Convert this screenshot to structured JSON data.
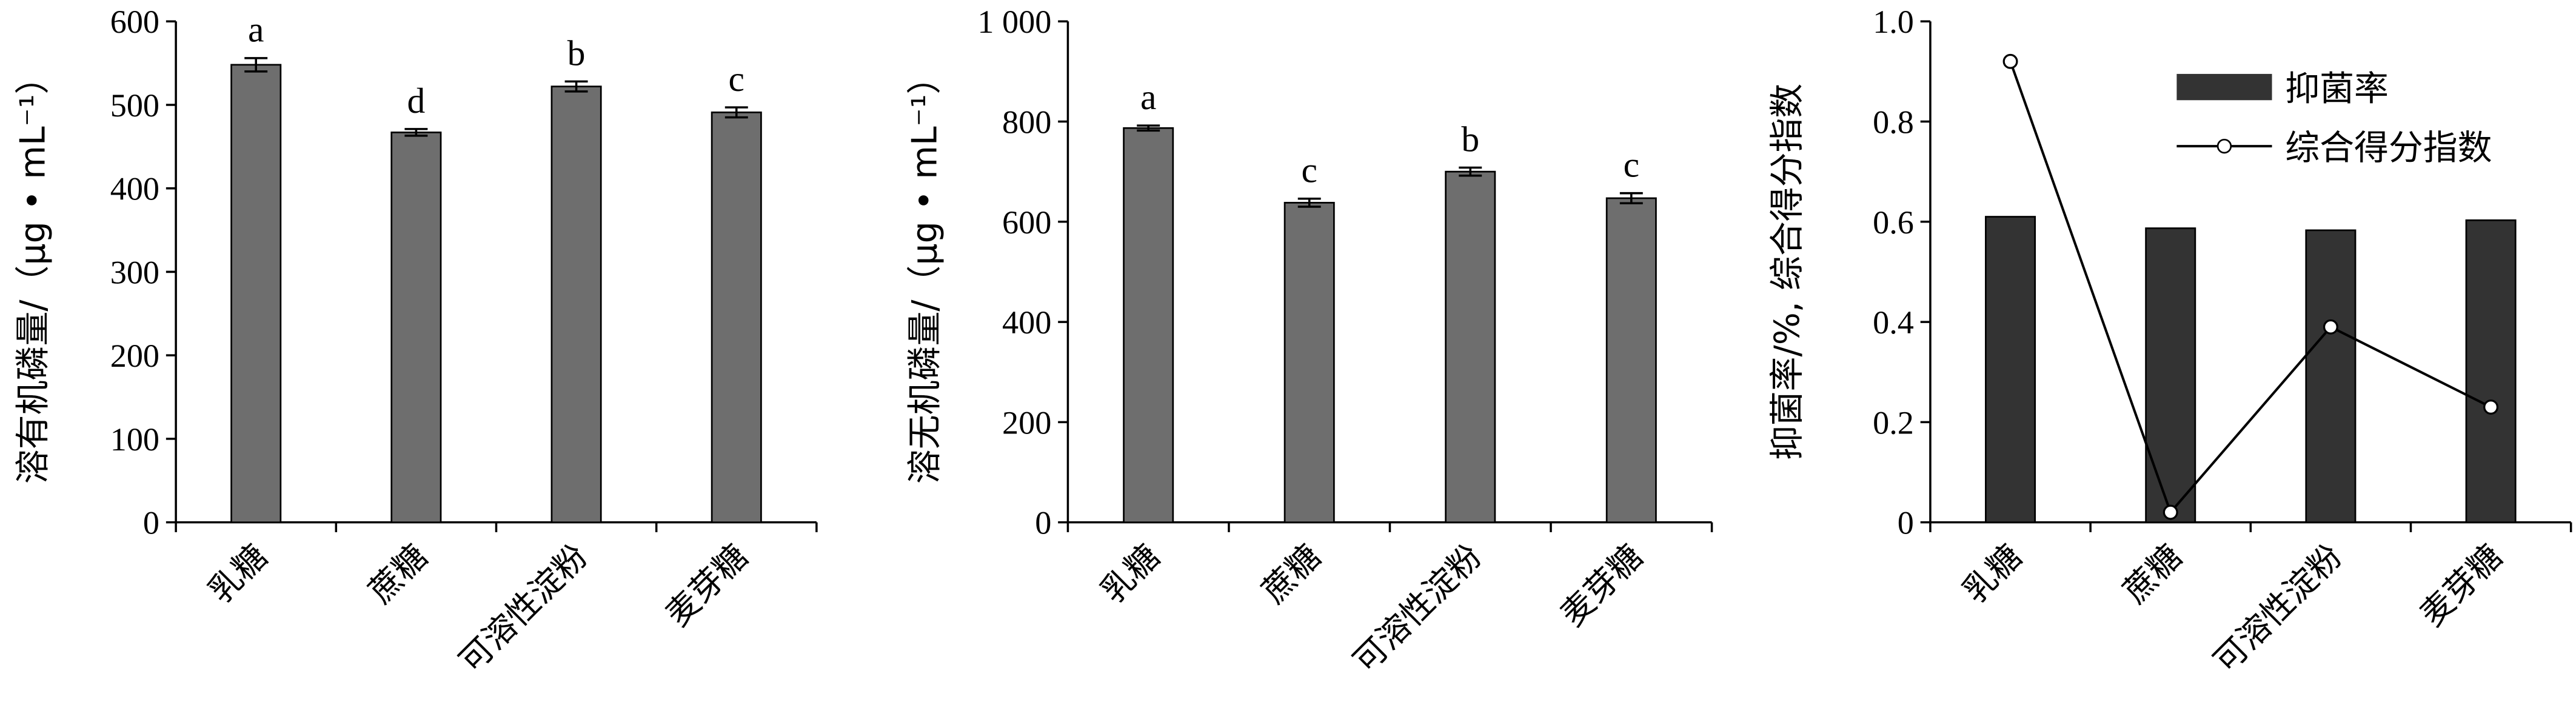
{
  "chart_data": [
    {
      "type": "bar",
      "ylabel": "溶有机磷量/（μg • mL⁻¹）",
      "categories": [
        "乳糖",
        "蔗糖",
        "可溶性淀粉",
        "麦芽糖"
      ],
      "values": [
        548,
        467,
        522,
        491
      ],
      "errors": [
        8,
        4,
        6,
        6
      ],
      "letters": [
        "a",
        "d",
        "b",
        "c"
      ],
      "color": "#6e6e6e",
      "ylim": [
        0,
        600
      ],
      "yticks": [
        0,
        100,
        200,
        300,
        400,
        500,
        600
      ]
    },
    {
      "type": "bar",
      "ylabel": "溶无机磷量/（μg • mL⁻¹）",
      "categories": [
        "乳糖",
        "蔗糖",
        "可溶性淀粉",
        "麦芽糖"
      ],
      "values": [
        787,
        638,
        700,
        647
      ],
      "errors": [
        5,
        8,
        8,
        10
      ],
      "letters": [
        "a",
        "c",
        "b",
        "c"
      ],
      "color": "#6e6e6e",
      "ylim": [
        0,
        1000
      ],
      "yticks": [
        0,
        200,
        400,
        600,
        800,
        {
          "value": 1000,
          "label": "1 000"
        }
      ]
    },
    {
      "type": "combo",
      "ylabel": "抑菌率/%, 综合得分指数",
      "categories": [
        "乳糖",
        "蔗糖",
        "可溶性淀粉",
        "麦芽糖"
      ],
      "series": [
        {
          "name": "抑菌率",
          "kind": "bar",
          "color": "#333333",
          "values": [
            0.61,
            0.587,
            0.583,
            0.603
          ]
        },
        {
          "name": "综合得分指数",
          "kind": "line",
          "color": "#000000",
          "values": [
            0.92,
            0.02,
            0.39,
            0.23
          ]
        }
      ],
      "ylim": [
        0,
        1
      ],
      "yticks": [
        0,
        0.2,
        0.4,
        0.6,
        0.8,
        {
          "value": 1,
          "label": "1.0"
        }
      ],
      "legend": "upper right"
    }
  ]
}
